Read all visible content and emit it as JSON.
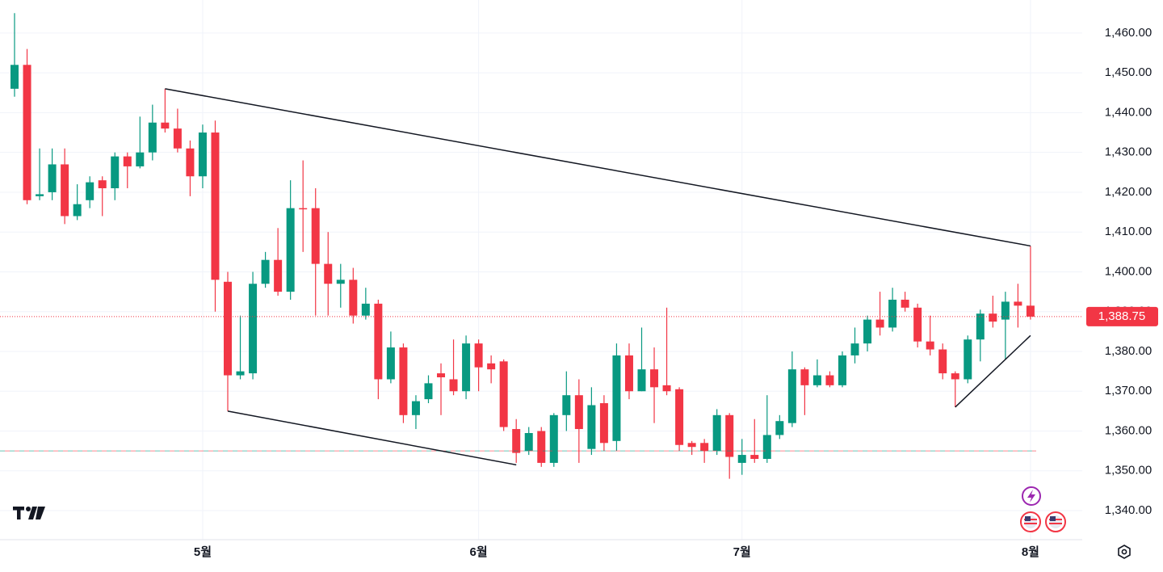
{
  "chart_data": {
    "type": "candlestick",
    "categories": [
      null,
      null,
      null,
      null,
      null,
      null,
      null,
      null,
      null,
      null,
      null,
      null,
      null,
      null,
      null,
      "5월",
      null,
      null,
      null,
      null,
      null,
      null,
      null,
      null,
      null,
      null,
      null,
      null,
      null,
      null,
      null,
      null,
      null,
      null,
      null,
      null,
      null,
      "6월",
      null,
      null,
      null,
      null,
      null,
      null,
      null,
      null,
      null,
      null,
      null,
      null,
      null,
      null,
      null,
      null,
      null,
      null,
      null,
      null,
      "7월",
      null,
      null,
      null,
      null,
      null,
      null,
      null,
      null,
      null,
      null,
      null,
      null,
      null,
      null,
      null,
      null,
      null,
      null,
      null,
      null,
      null,
      null,
      "8월"
    ],
    "open": [
      1446,
      1452,
      1419,
      1420,
      1427,
      1414,
      1418,
      1423,
      1421,
      1429,
      1426.5,
      1430,
      1437.5,
      1436,
      1431,
      1424,
      1435,
      1397.5,
      1374,
      1374.5,
      1397,
      1403,
      1395,
      1416,
      1416,
      1402,
      1397,
      1398,
      1389,
      1392,
      1373,
      1381,
      1364,
      1368,
      1374.5,
      1373,
      1370,
      1382,
      1377,
      1377.5,
      1360.5,
      1355,
      1360,
      1352,
      1364,
      1369,
      1355.5,
      1367,
      1357.5,
      1379,
      1370,
      1375.5,
      1371.5,
      1370.5,
      1357,
      1357,
      1355,
      1364,
      1352,
      1354,
      1353,
      1359,
      1362,
      1375.5,
      1371.5,
      1374,
      1371.5,
      1379,
      1382,
      1388,
      1386,
      1393,
      1391,
      1382.5,
      1380.5,
      1374.5,
      1373,
      1383,
      1389.5,
      1388,
      1392.5,
      1391.5
    ],
    "high": [
      1465,
      1456,
      1431,
      1431,
      1431,
      1422,
      1424,
      1424,
      1430,
      1430,
      1439,
      1442,
      1446,
      1441,
      1433,
      1437,
      1438,
      1400,
      1389,
      1400,
      1405,
      1411,
      1423,
      1428,
      1421,
      1410,
      1402,
      1401,
      1396,
      1393,
      1385,
      1382,
      1369,
      1374,
      1377,
      1383,
      1384,
      1383,
      1379,
      1378,
      1363,
      1361,
      1361,
      1364.5,
      1375,
      1373,
      1371,
      1369,
      1382,
      1382,
      1386,
      1381,
      1391,
      1371,
      1357.5,
      1358,
      1365.5,
      1364.5,
      1358,
      1363,
      1369,
      1364,
      1380,
      1376,
      1378,
      1375,
      1380,
      1386,
      1389,
      1395,
      1396,
      1395,
      1392,
      1389,
      1382,
      1375,
      1384,
      1390.5,
      1394,
      1395,
      1397,
      1406.5
    ],
    "low": [
      1444,
      1417,
      1418,
      1418,
      1412,
      1413,
      1416,
      1414,
      1418,
      1421,
      1426,
      1428,
      1435,
      1430,
      1419,
      1421,
      1390,
      1365,
      1373,
      1373,
      1396,
      1394,
      1393,
      1405,
      1389,
      1389,
      1391,
      1387,
      1388,
      1368,
      1372,
      1362,
      1360.5,
      1367,
      1364,
      1369,
      1368,
      1370,
      1372,
      1360,
      1352,
      1354,
      1351,
      1351,
      1360,
      1352,
      1354,
      1355,
      1355,
      1368,
      1370,
      1362,
      1369,
      1355,
      1354,
      1352,
      1354,
      1348,
      1349,
      1352,
      1352,
      1358,
      1361,
      1364,
      1371,
      1371,
      1371,
      1377,
      1380,
      1384,
      1385,
      1390,
      1381,
      1379,
      1373,
      1366,
      1372,
      1377.5,
      1386,
      1378,
      1386,
      1388
    ],
    "close": [
      1452,
      1418,
      1419.5,
      1427,
      1414,
      1417,
      1422.5,
      1421,
      1429,
      1426.5,
      1430,
      1437.5,
      1436,
      1431,
      1424,
      1435,
      1398,
      1374,
      1375,
      1397,
      1403,
      1395,
      1416,
      1415.7,
      1402,
      1397,
      1398,
      1389,
      1392,
      1373,
      1381,
      1364,
      1367.5,
      1372,
      1373.5,
      1370,
      1382,
      1376,
      1375.5,
      1361,
      1354.5,
      1359.5,
      1352,
      1364,
      1369,
      1360.5,
      1366.5,
      1357,
      1379,
      1370,
      1375.5,
      1371,
      1370,
      1356.5,
      1356,
      1355,
      1364,
      1353.5,
      1354,
      1353,
      1359,
      1362.5,
      1375.5,
      1371.5,
      1374,
      1371.5,
      1379,
      1382,
      1388,
      1386,
      1393,
      1391,
      1382.5,
      1380.5,
      1374.5,
      1373,
      1383,
      1389.5,
      1387.5,
      1392.5,
      1391.5,
      1388.75
    ],
    "up_color": "#089981",
    "down_color": "#f23645",
    "ylim": [
      1332.7,
      1468.3
    ],
    "yticks": [
      {
        "value": 1340,
        "label": "1,340.00"
      },
      {
        "value": 1350,
        "label": "1,350.00"
      },
      {
        "value": 1360,
        "label": "1,360.00"
      },
      {
        "value": 1370,
        "label": "1,370.00"
      },
      {
        "value": 1380,
        "label": "1,380.00"
      },
      {
        "value": 1390,
        "label": "1,390.00"
      },
      {
        "value": 1400,
        "label": "1,400.00"
      },
      {
        "value": 1410,
        "label": "1,410.00"
      },
      {
        "value": 1420,
        "label": "1,420.00"
      },
      {
        "value": 1430,
        "label": "1,430.00"
      },
      {
        "value": 1440,
        "label": "1,440.00"
      },
      {
        "value": 1450,
        "label": "1,450.00"
      },
      {
        "value": 1460,
        "label": "1,460.00"
      }
    ],
    "grid": true,
    "last_price": {
      "value": 1388.75,
      "label": "1,388.75"
    },
    "reference_line": 1355,
    "trendlines": [
      {
        "from": {
          "index": 12,
          "value": 1446
        },
        "to": {
          "index": 81,
          "value": 1406.5
        }
      },
      {
        "from": {
          "index": 17,
          "value": 1365
        },
        "to": {
          "index": 40,
          "value": 1351.5
        }
      },
      {
        "from": {
          "index": 75,
          "value": 1366
        },
        "to": {
          "index": 81,
          "value": 1384
        }
      }
    ]
  }
}
